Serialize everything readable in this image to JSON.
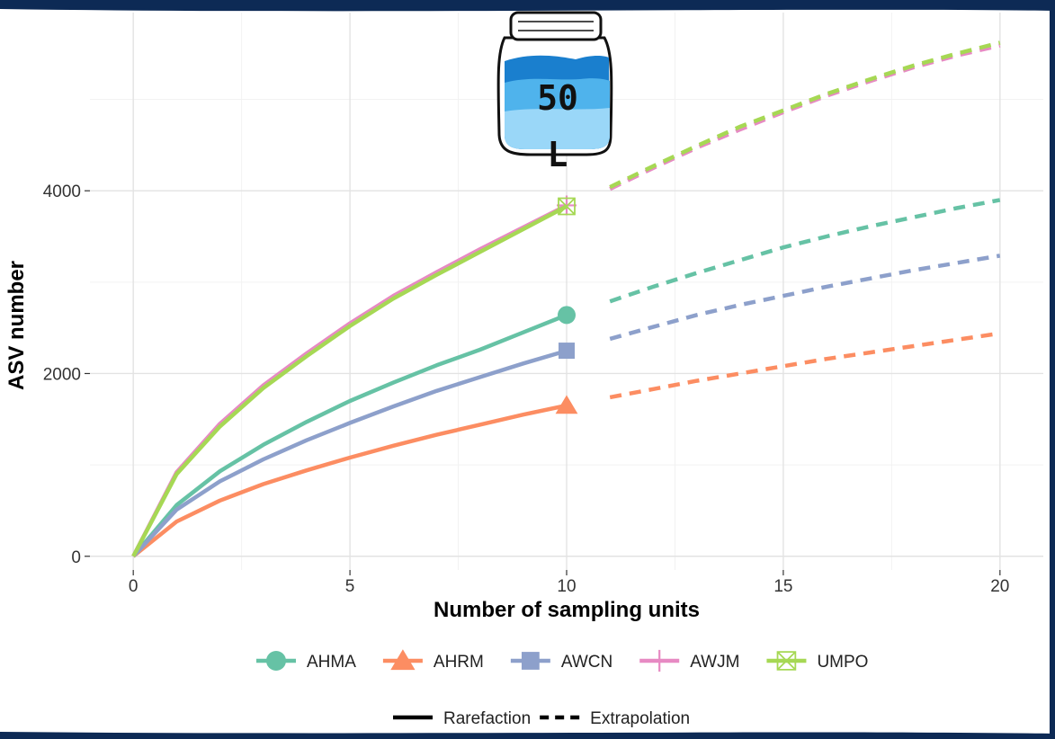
{
  "chart_data": {
    "type": "line",
    "title": "",
    "xlabel": "Number of sampling units",
    "ylabel": "ASV number",
    "xlim": [
      -1,
      21
    ],
    "ylim": [
      -150,
      5950
    ],
    "xticks": [
      "0",
      "5",
      "10",
      "15",
      "20"
    ],
    "yticks": [
      "0",
      "2000",
      "4000"
    ],
    "grid": true,
    "legend_position": "bottom",
    "line_type_legend": [
      "Rarefaction",
      "Extrapolation"
    ],
    "series": [
      {
        "name": "AHMA",
        "color": "#66c2a5",
        "marker": "circle",
        "rarefaction": {
          "x": [
            0,
            1,
            2,
            3,
            4,
            5,
            6,
            7,
            8,
            9,
            10
          ],
          "y": [
            0,
            560,
            930,
            1220,
            1470,
            1700,
            1900,
            2090,
            2260,
            2450,
            2640
          ]
        },
        "extrapolation": {
          "x": [
            11,
            12,
            13,
            14,
            15,
            16,
            17,
            18,
            19,
            20
          ],
          "y": [
            2790,
            2950,
            3100,
            3240,
            3380,
            3500,
            3610,
            3710,
            3810,
            3900
          ]
        }
      },
      {
        "name": "AHRM",
        "color": "#fc8d62",
        "marker": "triangle",
        "rarefaction": {
          "x": [
            0,
            1,
            2,
            3,
            4,
            5,
            6,
            7,
            8,
            9,
            10
          ],
          "y": [
            0,
            380,
            610,
            790,
            940,
            1080,
            1210,
            1330,
            1440,
            1550,
            1650
          ]
        },
        "extrapolation": {
          "x": [
            11,
            12,
            13,
            14,
            15,
            16,
            17,
            18,
            19,
            20
          ],
          "y": [
            1740,
            1830,
            1920,
            2000,
            2080,
            2160,
            2230,
            2300,
            2370,
            2440
          ]
        }
      },
      {
        "name": "AWCN",
        "color": "#8da0cb",
        "marker": "square",
        "rarefaction": {
          "x": [
            0,
            1,
            2,
            3,
            4,
            5,
            6,
            7,
            8,
            9,
            10
          ],
          "y": [
            0,
            510,
            820,
            1060,
            1270,
            1460,
            1640,
            1810,
            1960,
            2110,
            2250
          ]
        },
        "extrapolation": {
          "x": [
            11,
            12,
            13,
            14,
            15,
            16,
            17,
            18,
            19,
            20
          ],
          "y": [
            2380,
            2510,
            2640,
            2750,
            2850,
            2950,
            3040,
            3130,
            3210,
            3290
          ]
        }
      },
      {
        "name": "AWJM",
        "color": "#e78ac3",
        "marker": "plus",
        "rarefaction": {
          "x": [
            0,
            1,
            2,
            3,
            4,
            5,
            6,
            7,
            8,
            9,
            10
          ],
          "y": [
            0,
            920,
            1450,
            1870,
            2220,
            2550,
            2850,
            3110,
            3360,
            3600,
            3840
          ]
        },
        "extrapolation": {
          "x": [
            11,
            12,
            13,
            14,
            15,
            16,
            17,
            18,
            19,
            20
          ],
          "y": [
            4020,
            4250,
            4470,
            4670,
            4860,
            5040,
            5200,
            5350,
            5480,
            5590
          ]
        }
      },
      {
        "name": "UMPO",
        "color": "#a6d854",
        "marker": "square-x",
        "rarefaction": {
          "x": [
            0,
            1,
            2,
            3,
            4,
            5,
            6,
            7,
            8,
            9,
            10
          ],
          "y": [
            0,
            900,
            1420,
            1840,
            2190,
            2520,
            2820,
            3080,
            3330,
            3580,
            3830
          ]
        },
        "extrapolation": {
          "x": [
            11,
            12,
            13,
            14,
            15,
            16,
            17,
            18,
            19,
            20
          ],
          "y": [
            4040,
            4270,
            4490,
            4700,
            4880,
            5060,
            5220,
            5370,
            5500,
            5620
          ]
        }
      }
    ]
  },
  "jar": {
    "label_line1": "50",
    "label_line2": "L",
    "icon": "water-jar-icon"
  },
  "frame": {
    "accent": "#0d2a55"
  }
}
